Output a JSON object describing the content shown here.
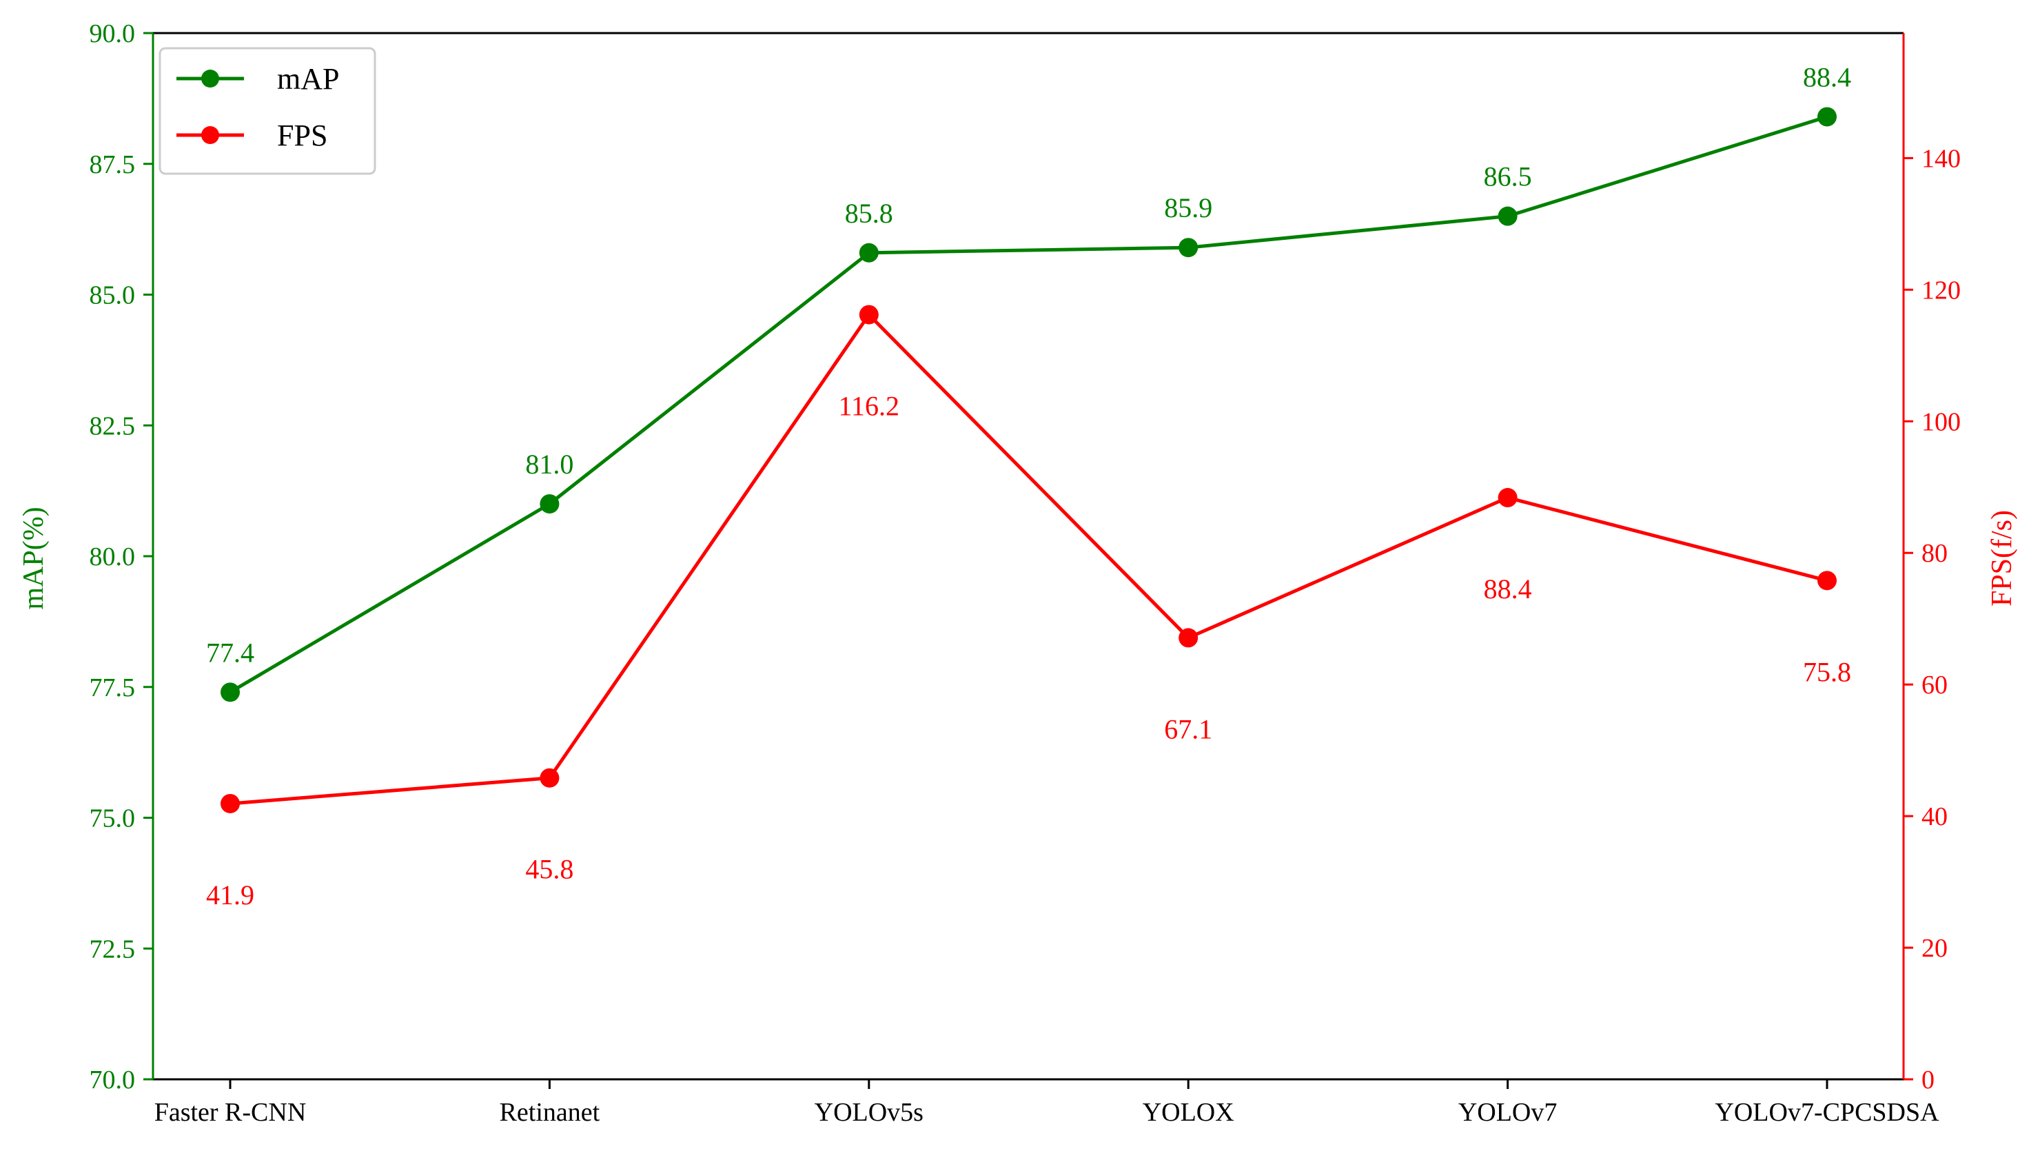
{
  "chart_data": {
    "type": "line",
    "categories": [
      "Faster R-CNN",
      "Retinanet",
      "YOLOv5s",
      "YOLOX",
      "YOLOv7",
      "YOLOv7-CPCSDSA"
    ],
    "series": [
      {
        "name": "mAP",
        "axis": "left",
        "color": "#008000",
        "values": [
          77.4,
          81.0,
          85.8,
          85.9,
          86.5,
          88.4
        ],
        "labels": [
          "77.4",
          "81.0",
          "85.8",
          "85.9",
          "86.5",
          "88.4"
        ]
      },
      {
        "name": "FPS",
        "axis": "right",
        "color": "#ff0000",
        "values": [
          41.9,
          45.8,
          116.2,
          67.1,
          88.4,
          75.8
        ],
        "labels": [
          "41.9",
          "45.8",
          "116.2",
          "67.1",
          "88.4",
          "75.8"
        ]
      }
    ],
    "ylabel_left": "mAP(%)",
    "ylabel_right": "FPS(f/s)",
    "ylim_left": [
      70.0,
      90.0
    ],
    "ylim_right": [
      0,
      159
    ],
    "yticks_left": [
      "70.0",
      "72.5",
      "75.0",
      "77.5",
      "80.0",
      "82.5",
      "85.0",
      "87.5",
      "90.0"
    ],
    "yticks_right": [
      "0",
      "20",
      "40",
      "60",
      "80",
      "100",
      "120",
      "140"
    ],
    "legend_position": "top-left",
    "grid": false
  }
}
